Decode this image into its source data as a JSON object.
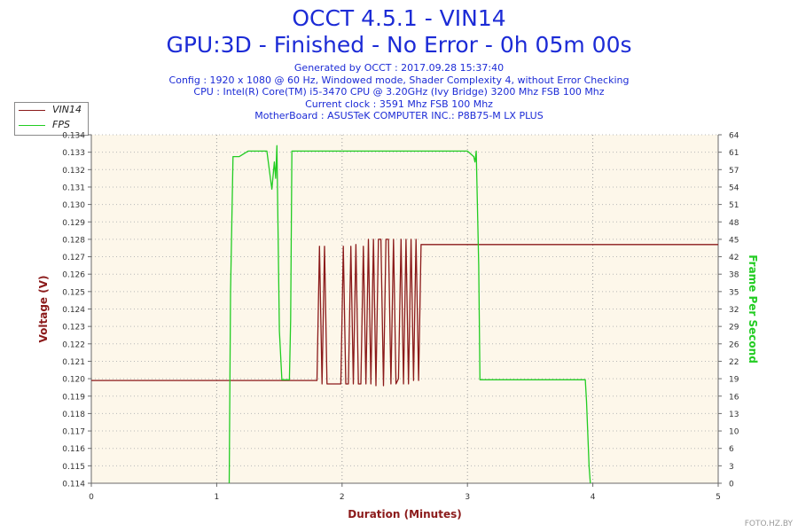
{
  "title_line1": "OCCT 4.5.1 - VIN14",
  "title_line2": "GPU:3D - Finished - No Error - 0h 05m 00s",
  "info_lines": [
    "Generated by OCCT : 2017.09.28 15:37:40",
    "Config : 1920 x 1080 @ 60 Hz, Windowed mode, Shader Complexity 4, without Error Checking",
    "CPU : Intel(R) Core(TM) i5-3470 CPU @ 3.20GHz (Ivy Bridge) 3200 Mhz FSB 100 Mhz",
    "Current clock : 3591 Mhz FSB 100 Mhz",
    "MotherBoard : ASUSTeK COMPUTER INC.: P8B75-M LX PLUS"
  ],
  "watermark": "FOTO.HZ.BY",
  "colors": {
    "title": "#1c2bd6",
    "vin14": "#8b1a1a",
    "fps": "#22cc22",
    "plot_bg": "#fdf7ea"
  },
  "chart_data": {
    "type": "line",
    "xlabel": "Duration (Minutes)",
    "ylabel": "Voltage (V)",
    "y2label": "Frame Per Second",
    "xlim": [
      0,
      5
    ],
    "ylim": [
      0.114,
      0.134
    ],
    "y2lim": [
      0,
      64
    ],
    "x_ticks": [
      "0",
      "1",
      "2",
      "3",
      "4",
      "5"
    ],
    "y_ticks": [
      "0.114",
      "0.115",
      "0.116",
      "0.117",
      "0.118",
      "0.119",
      "0.120",
      "0.121",
      "0.122",
      "0.123",
      "0.124",
      "0.125",
      "0.126",
      "0.127",
      "0.128",
      "0.129",
      "0.130",
      "0.131",
      "0.132",
      "0.133",
      "0.134"
    ],
    "y2_ticks": [
      "0",
      "3",
      "6",
      "10",
      "13",
      "16",
      "19",
      "22",
      "26",
      "29",
      "32",
      "35",
      "38",
      "42",
      "45",
      "48",
      "51",
      "54",
      "57",
      "61",
      "64"
    ],
    "grid": true,
    "legend": "top-left outside",
    "series": [
      {
        "name": "VIN14",
        "axis": "left",
        "x": [
          0,
          1.8,
          1.82,
          1.84,
          1.86,
          1.88,
          1.9,
          1.92,
          1.99,
          2.01,
          2.03,
          2.05,
          2.07,
          2.09,
          2.11,
          2.13,
          2.15,
          2.17,
          2.19,
          2.21,
          2.23,
          2.25,
          2.27,
          2.29,
          2.31,
          2.33,
          2.35,
          2.37,
          2.39,
          2.41,
          2.43,
          2.45,
          2.47,
          2.49,
          2.51,
          2.53,
          2.55,
          2.57,
          2.59,
          2.61,
          2.63,
          5.0
        ],
        "y": [
          0.1199,
          0.1199,
          0.1276,
          0.1197,
          0.1276,
          0.1197,
          0.1197,
          0.1197,
          0.1197,
          0.1276,
          0.1197,
          0.1197,
          0.1276,
          0.1197,
          0.1277,
          0.1197,
          0.1197,
          0.1276,
          0.1197,
          0.128,
          0.1197,
          0.128,
          0.1196,
          0.128,
          0.128,
          0.1196,
          0.128,
          0.128,
          0.1197,
          0.128,
          0.1197,
          0.12,
          0.128,
          0.1197,
          0.128,
          0.1197,
          0.128,
          0.1199,
          0.128,
          0.1199,
          0.1277,
          0.1277
        ]
      },
      {
        "name": "FPS",
        "axis": "right",
        "x": [
          1.1,
          1.11,
          1.13,
          1.18,
          1.25,
          1.4,
          1.44,
          1.46,
          1.47,
          1.48,
          1.5,
          1.52,
          1.55,
          1.58,
          1.59,
          1.6,
          2.7,
          3.0,
          3.05,
          3.06,
          3.07,
          3.09,
          3.1,
          3.3,
          3.6,
          3.8,
          3.94,
          3.95,
          3.97,
          3.98
        ],
        "y": [
          0,
          35,
          60,
          60,
          61,
          61,
          54,
          59,
          56,
          62,
          28,
          19,
          19,
          19,
          30,
          61,
          61,
          61,
          60,
          59,
          61,
          40,
          19,
          19,
          19,
          19,
          19,
          15,
          3,
          0
        ]
      }
    ]
  }
}
